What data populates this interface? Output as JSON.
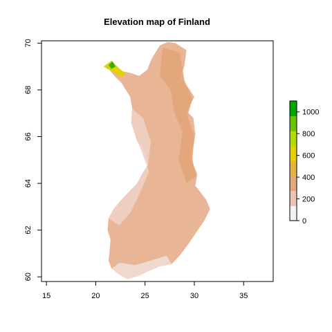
{
  "chart_data": {
    "type": "heatmap",
    "title": "Elevation map of Finland",
    "xlabel": "",
    "ylabel": "",
    "xlim": [
      14.5,
      38
    ],
    "ylim": [
      59.8,
      70.1
    ],
    "x_ticks": [
      15,
      20,
      25,
      30,
      35
    ],
    "y_ticks": [
      60,
      62,
      64,
      66,
      68,
      70
    ],
    "legend": {
      "placement": "right",
      "min": 0,
      "max": 1100,
      "ticks": [
        0,
        200,
        400,
        600,
        800,
        1000
      ],
      "colors": [
        "#f2f2f2",
        "#ebc4b6",
        "#e6a77b",
        "#e3b340",
        "#e6d100",
        "#b3dc00",
        "#6cc400",
        "#00a600"
      ]
    },
    "region": {
      "name": "",
      "outline_lonlat": [
        [
          21.0,
          69.0
        ],
        [
          21.6,
          69.25
        ],
        [
          22.0,
          68.95
        ],
        [
          22.6,
          68.8
        ],
        [
          23.6,
          68.72
        ],
        [
          24.4,
          68.6
        ],
        [
          25.2,
          68.85
        ],
        [
          25.7,
          69.35
        ],
        [
          26.5,
          69.9
        ],
        [
          27.3,
          70.05
        ],
        [
          28.1,
          70.0
        ],
        [
          29.2,
          69.7
        ],
        [
          29.0,
          69.05
        ],
        [
          28.6,
          68.5
        ],
        [
          29.3,
          68.15
        ],
        [
          30.0,
          67.7
        ],
        [
          29.2,
          67.1
        ],
        [
          29.9,
          66.8
        ],
        [
          30.1,
          66.1
        ],
        [
          29.9,
          65.5
        ],
        [
          29.8,
          64.9
        ],
        [
          30.3,
          64.4
        ],
        [
          30.1,
          63.9
        ],
        [
          31.2,
          63.3
        ],
        [
          31.6,
          62.9
        ],
        [
          31.0,
          62.4
        ],
        [
          30.2,
          61.9
        ],
        [
          29.4,
          61.4
        ],
        [
          28.5,
          60.9
        ],
        [
          27.7,
          60.55
        ],
        [
          26.5,
          60.45
        ],
        [
          25.4,
          60.25
        ],
        [
          24.4,
          60.05
        ],
        [
          23.2,
          59.9
        ],
        [
          22.4,
          60.1
        ],
        [
          21.6,
          60.35
        ],
        [
          21.3,
          60.7
        ],
        [
          21.4,
          61.1
        ],
        [
          21.5,
          61.6
        ],
        [
          21.2,
          62.0
        ],
        [
          21.3,
          62.5
        ],
        [
          21.8,
          62.9
        ],
        [
          22.6,
          63.3
        ],
        [
          23.5,
          63.7
        ],
        [
          24.2,
          64.0
        ],
        [
          24.7,
          64.4
        ],
        [
          25.3,
          64.8
        ],
        [
          25.1,
          65.1
        ],
        [
          24.7,
          65.6
        ],
        [
          24.2,
          65.8
        ],
        [
          23.9,
          66.2
        ],
        [
          23.6,
          66.6
        ],
        [
          23.7,
          67.2
        ],
        [
          23.5,
          67.7
        ],
        [
          22.6,
          68.3
        ],
        [
          22.0,
          68.55
        ],
        [
          21.3,
          68.9
        ]
      ],
      "highlands_lonlat": [
        [
          20.8,
          69.0
        ],
        [
          21.6,
          69.25
        ],
        [
          22.3,
          68.95
        ],
        [
          23.0,
          68.7
        ],
        [
          22.6,
          68.55
        ],
        [
          21.8,
          68.75
        ]
      ],
      "peak_lonlat": [
        [
          21.3,
          69.05
        ],
        [
          21.7,
          69.22
        ],
        [
          22.0,
          69.0
        ],
        [
          21.6,
          68.9
        ]
      ],
      "east_upland_lonlat": [
        [
          26.8,
          69.8
        ],
        [
          28.5,
          69.6
        ],
        [
          29.0,
          68.4
        ],
        [
          29.8,
          67.6
        ],
        [
          29.3,
          66.9
        ],
        [
          30.0,
          66.0
        ],
        [
          29.7,
          65.2
        ],
        [
          30.2,
          64.3
        ],
        [
          29.2,
          64.0
        ],
        [
          28.4,
          65.0
        ],
        [
          28.8,
          66.2
        ],
        [
          28.0,
          67.0
        ],
        [
          27.6,
          68.0
        ],
        [
          26.5,
          68.6
        ]
      ],
      "lowland_coast_lonlat": [
        [
          23.9,
          66.2
        ],
        [
          23.6,
          66.6
        ],
        [
          23.7,
          67.2
        ],
        [
          24.8,
          66.8
        ],
        [
          25.6,
          65.8
        ],
        [
          25.3,
          64.8
        ],
        [
          24.7,
          64.4
        ],
        [
          24.2,
          64.0
        ],
        [
          23.5,
          63.7
        ],
        [
          22.6,
          63.3
        ],
        [
          21.8,
          62.9
        ],
        [
          21.3,
          62.5
        ],
        [
          22.4,
          62.2
        ],
        [
          23.6,
          62.8
        ],
        [
          24.6,
          63.7
        ],
        [
          25.4,
          64.5
        ]
      ],
      "south_coast_lonlat": [
        [
          21.6,
          60.35
        ],
        [
          22.4,
          60.1
        ],
        [
          23.2,
          59.9
        ],
        [
          24.4,
          60.05
        ],
        [
          25.4,
          60.25
        ],
        [
          26.5,
          60.45
        ],
        [
          27.7,
          60.55
        ],
        [
          27.2,
          60.9
        ],
        [
          25.6,
          60.7
        ],
        [
          24.0,
          60.5
        ],
        [
          22.4,
          60.6
        ]
      ]
    }
  }
}
